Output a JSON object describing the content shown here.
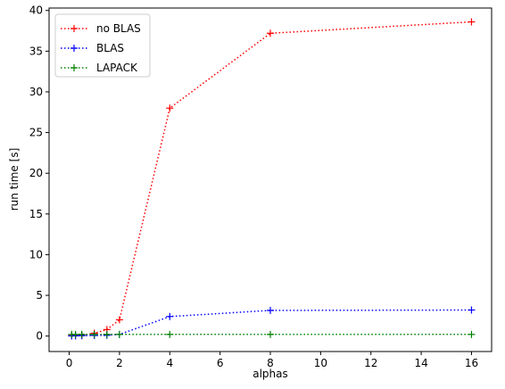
{
  "chart_data": {
    "type": "line",
    "title": "",
    "xlabel": "alphas",
    "ylabel": "run time [s]",
    "xlim": [
      -0.8,
      16.8
    ],
    "ylim": [
      -1.9,
      40.3
    ],
    "xticks": [
      0,
      2,
      4,
      6,
      8,
      10,
      12,
      14,
      16
    ],
    "yticks": [
      0,
      5,
      10,
      15,
      20,
      25,
      30,
      35,
      40
    ],
    "grid": false,
    "legend_position": "upper-left",
    "x": [
      0.1,
      0.25,
      0.5,
      1,
      1.5,
      2,
      4,
      8,
      16
    ],
    "series": [
      {
        "name": "no BLAS",
        "color": "#ff0000",
        "values": [
          0.05,
          0.05,
          0.1,
          0.35,
          0.8,
          2.0,
          28.0,
          37.2,
          38.6
        ]
      },
      {
        "name": "BLAS",
        "color": "#0000ff",
        "values": [
          0.02,
          0.03,
          0.05,
          0.08,
          0.1,
          0.2,
          2.4,
          3.15,
          3.2
        ]
      },
      {
        "name": "LAPACK",
        "color": "#008000",
        "values": [
          0.2,
          0.2,
          0.2,
          0.2,
          0.2,
          0.2,
          0.2,
          0.2,
          0.2
        ]
      }
    ]
  }
}
